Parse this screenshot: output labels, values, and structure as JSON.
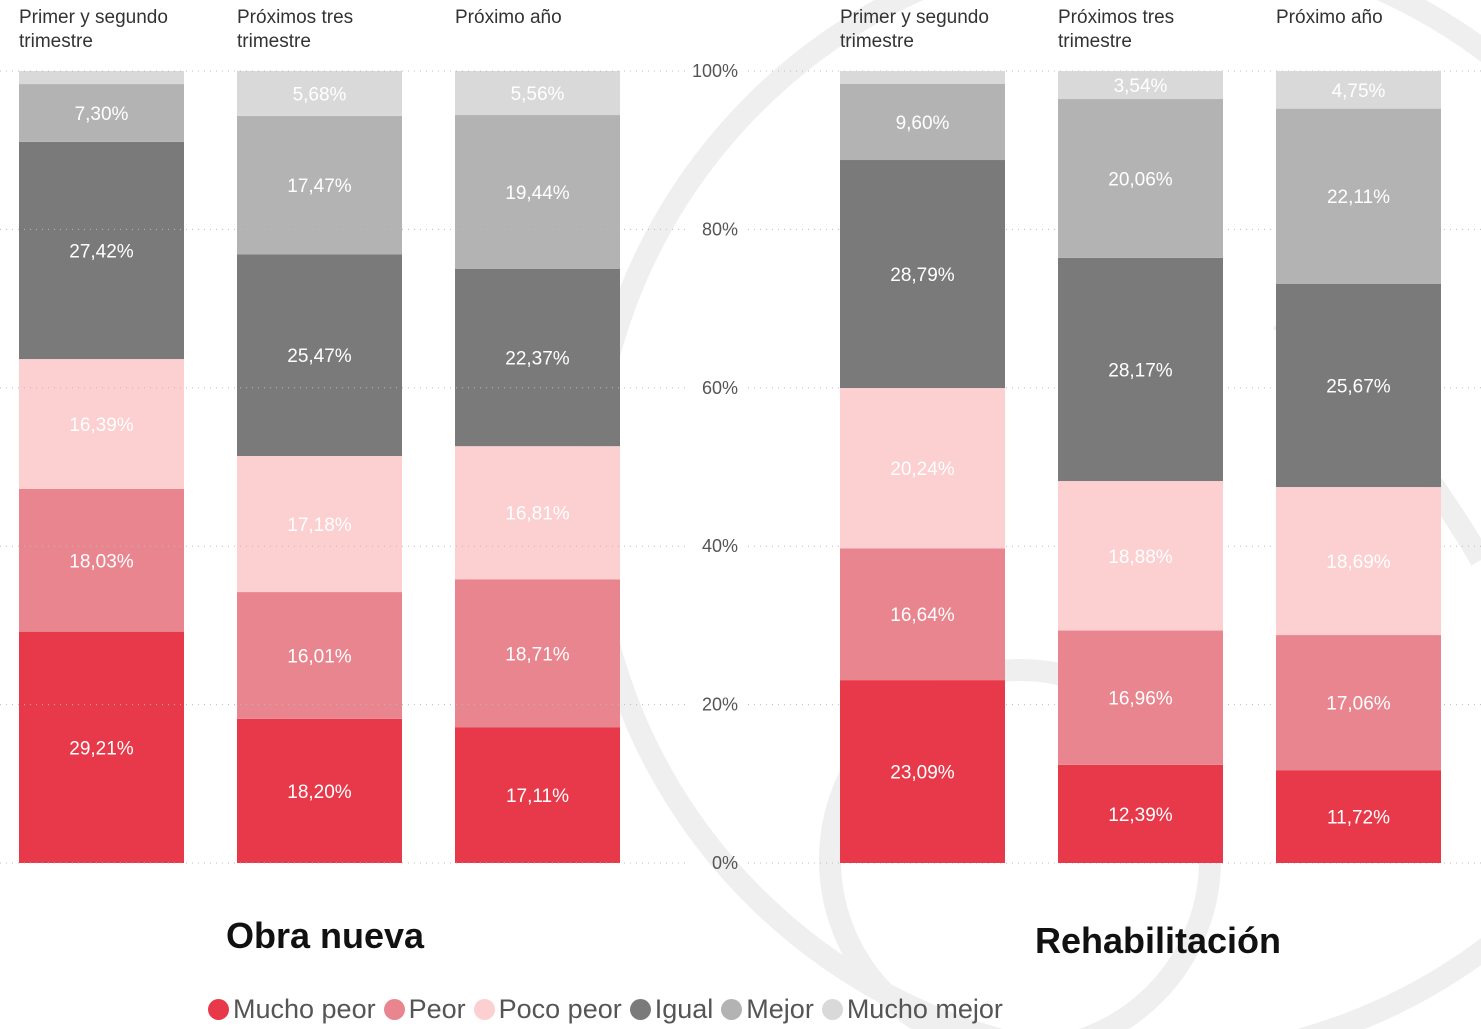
{
  "chart_data": [
    {
      "type": "bar",
      "stacked": true,
      "title": "Obra nueva",
      "categories": [
        "Primer y segundo trimestre",
        "Próximos tres trimestre",
        "Próximo año"
      ],
      "ylim": [
        0,
        100
      ],
      "series": [
        {
          "name": "Mucho peor",
          "color": "#e8394a",
          "values": [
            29.21,
            18.2,
            17.11
          ],
          "value_labels": [
            "29,21%",
            "18,20%",
            "17,11%"
          ]
        },
        {
          "name": "Peor",
          "color": "#e9858f",
          "values": [
            18.03,
            16.01,
            18.71
          ],
          "value_labels": [
            "18,03%",
            "16,01%",
            "18,71%"
          ]
        },
        {
          "name": "Poco peor",
          "color": "#fccfd1",
          "values": [
            16.39,
            17.18,
            16.81
          ],
          "value_labels": [
            "16,39%",
            "17,18%",
            "16,81%"
          ]
        },
        {
          "name": "Igual",
          "color": "#7a7a7a",
          "values": [
            27.42,
            25.47,
            22.37
          ],
          "value_labels": [
            "27,42%",
            "25,47%",
            "22,37%"
          ]
        },
        {
          "name": "Mejor",
          "color": "#b3b3b3",
          "values": [
            7.3,
            17.47,
            19.44
          ],
          "value_labels": [
            "7,30%",
            "17,47%",
            "19,44%"
          ]
        },
        {
          "name": "Mucho mejor",
          "color": "#d9d9d9",
          "values": [
            1.65,
            5.68,
            5.56
          ],
          "value_labels": [
            null,
            "5,68%",
            "5,56%"
          ]
        }
      ]
    },
    {
      "type": "bar",
      "stacked": true,
      "title": "Rehabilitación",
      "categories": [
        "Primer y segundo trimestre",
        "Próximos tres trimestre",
        "Próximo año"
      ],
      "ylim": [
        0,
        100
      ],
      "yticks": [
        {
          "value": 0,
          "label": "0%"
        },
        {
          "value": 20,
          "label": "20%"
        },
        {
          "value": 40,
          "label": "40%"
        },
        {
          "value": 60,
          "label": "60%"
        },
        {
          "value": 80,
          "label": "80%"
        },
        {
          "value": 100,
          "label": "100%"
        }
      ],
      "grid": true,
      "series": [
        {
          "color": "#e8394a",
          "values": [
            23.09,
            12.39,
            11.72
          ],
          "value_labels": [
            "23,09%",
            "12,39%",
            "11,72%"
          ]
        },
        {
          "color": "#e9858f",
          "values": [
            16.64,
            16.96,
            17.06
          ],
          "value_labels": [
            "16,64%",
            "16,96%",
            "17,06%"
          ]
        },
        {
          "color": "#fccfd1",
          "values": [
            20.24,
            18.88,
            18.69
          ],
          "value_labels": [
            "20,24%",
            "18,88%",
            "18,69%"
          ]
        },
        {
          "color": "#7a7a7a",
          "values": [
            28.79,
            28.17,
            25.67
          ],
          "value_labels": [
            "28,79%",
            "28,17%",
            "25,67%"
          ]
        },
        {
          "color": "#b3b3b3",
          "values": [
            9.6,
            20.06,
            22.11
          ],
          "value_labels": [
            "9,60%",
            "20,06%",
            "22,11%"
          ]
        },
        {
          "color": "#d9d9d9",
          "values": [
            1.64,
            3.54,
            4.75
          ],
          "value_labels": [
            null,
            "3,54%",
            "4,75%"
          ]
        }
      ]
    }
  ]
}
